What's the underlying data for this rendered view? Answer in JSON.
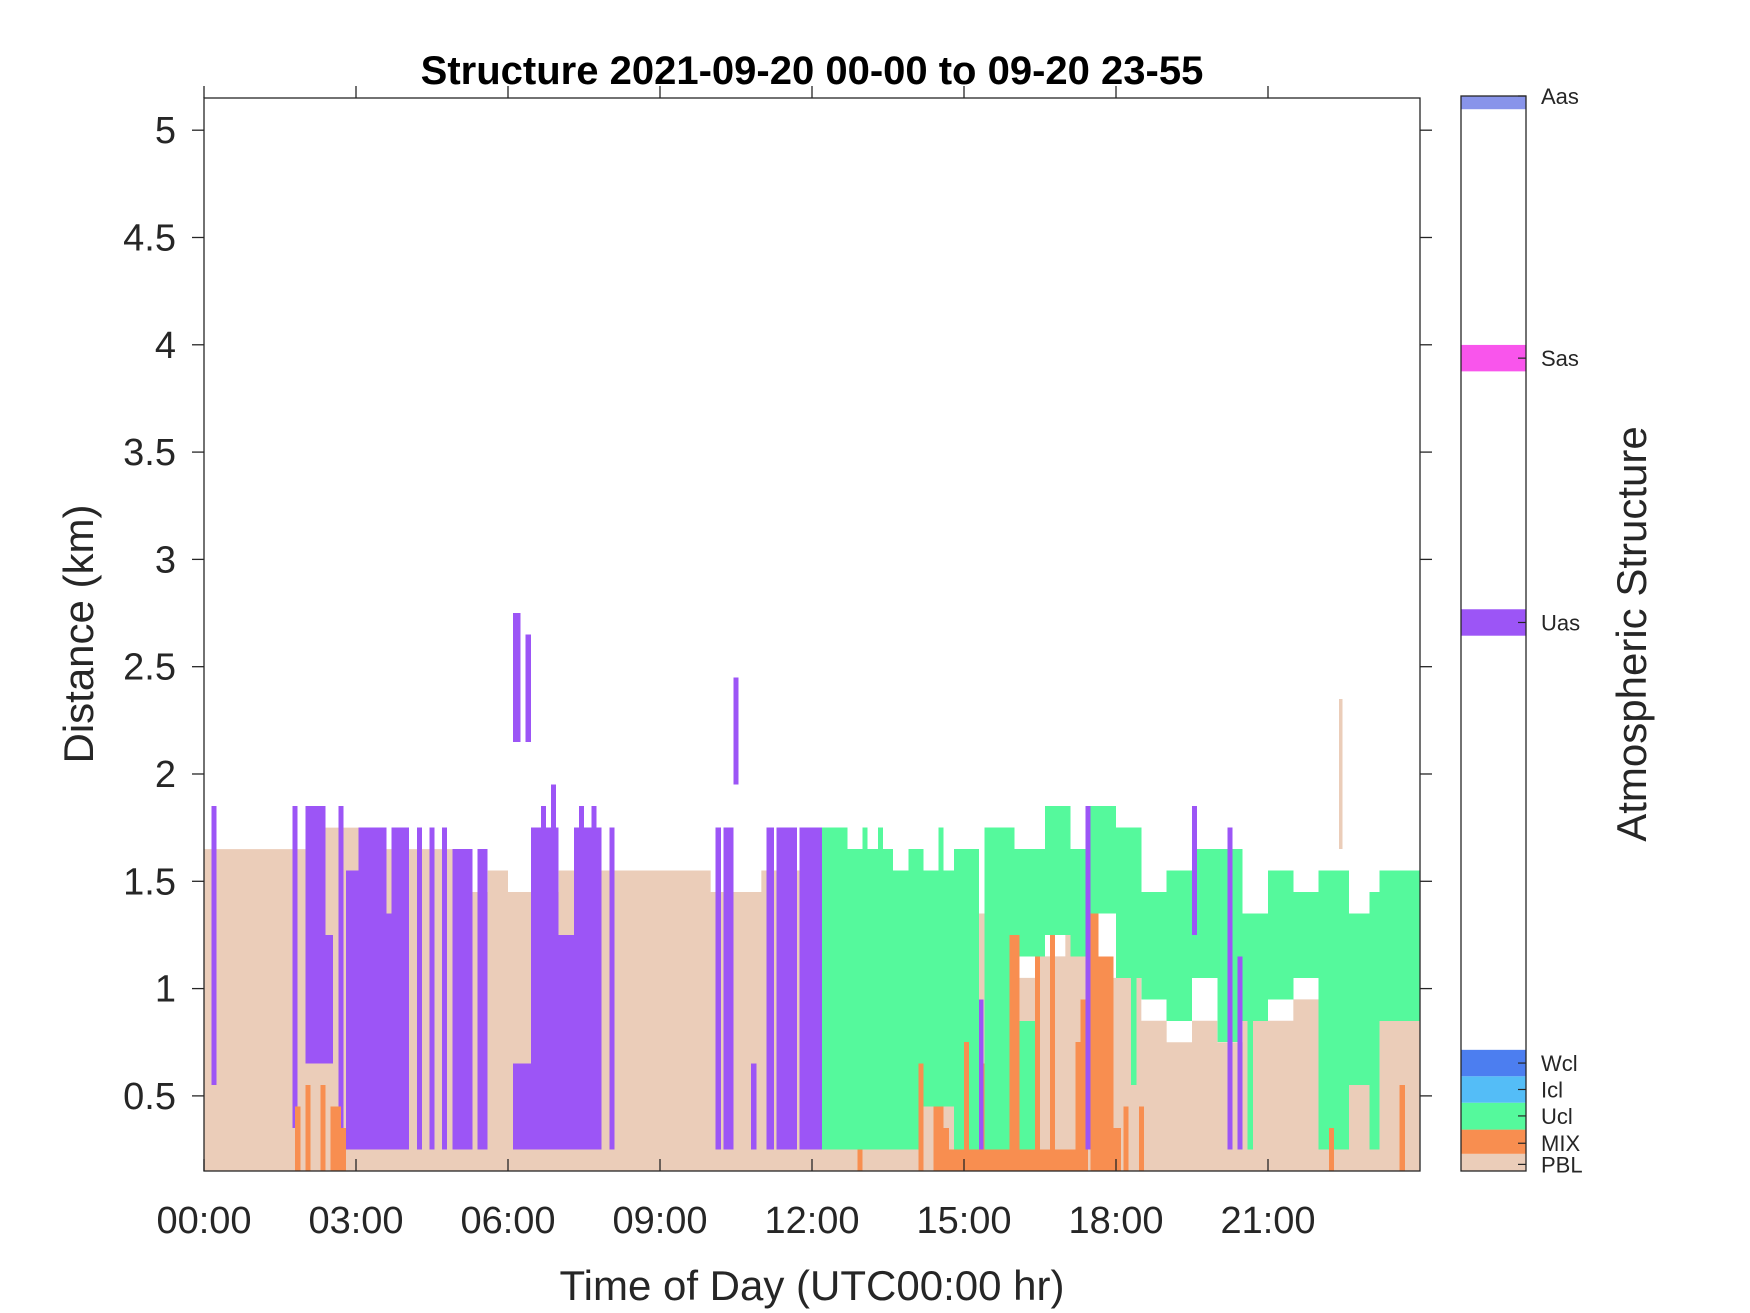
{
  "chart_data": {
    "type": "heatmap",
    "title": "Structure 2021-09-20 00-00 to 09-20 23-55",
    "xlabel": "Time of Day (UTC00:00 hr)",
    "ylabel": "Distance (km)",
    "colorbar_label": "Atmospheric Structure",
    "xlim_hours": [
      0,
      24
    ],
    "ylim_km": [
      0.15,
      5.15
    ],
    "x_ticks": [
      {
        "hour": 0,
        "label": "00:00"
      },
      {
        "hour": 3,
        "label": "03:00"
      },
      {
        "hour": 6,
        "label": "06:00"
      },
      {
        "hour": 9,
        "label": "09:00"
      },
      {
        "hour": 12,
        "label": "12:00"
      },
      {
        "hour": 15,
        "label": "15:00"
      },
      {
        "hour": 18,
        "label": "18:00"
      },
      {
        "hour": 21,
        "label": "21:00"
      }
    ],
    "y_ticks": [
      {
        "value": 0.5,
        "label": "0.5"
      },
      {
        "value": 1,
        "label": "1"
      },
      {
        "value": 1.5,
        "label": "1.5"
      },
      {
        "value": 2,
        "label": "2"
      },
      {
        "value": 2.5,
        "label": "2.5"
      },
      {
        "value": 3,
        "label": "3"
      },
      {
        "value": 3.5,
        "label": "3.5"
      },
      {
        "value": 4,
        "label": "4"
      },
      {
        "value": 4.5,
        "label": "4.5"
      },
      {
        "value": 5,
        "label": "5"
      }
    ],
    "categories": [
      {
        "code": "PBL",
        "name": "PBL",
        "color": "#ebcdb9",
        "level": 0.15
      },
      {
        "code": "MIX",
        "name": "MIX",
        "color": "#f88e50",
        "level": 0.63
      },
      {
        "code": "Ucl",
        "name": "Ucl",
        "color": "#55f99c",
        "level": 1.25
      },
      {
        "code": "Icl",
        "name": "Icl",
        "color": "#54bdf7",
        "level": 1.85
      },
      {
        "code": "Wcl",
        "name": "Wcl",
        "color": "#4c7ef0",
        "level": 2.45
      },
      {
        "code": "Uas",
        "name": "Uas",
        "color": "#9c55f6",
        "level": 12.45
      },
      {
        "code": "Sas",
        "name": "Sas",
        "color": "#f955ec",
        "level": 18.45
      },
      {
        "code": "Aas",
        "name": "Aas",
        "color": "#8894ea",
        "level": 24.4
      }
    ],
    "colorbar_range": [
      0,
      24.4
    ],
    "colorbar_band_halfwidth": 0.3,
    "cell_hours": 0.0833,
    "pbl_top_km": [
      [
        0,
        1.65
      ],
      [
        1.25,
        1.65
      ],
      [
        2.3,
        1.75
      ],
      [
        3.4,
        1.65
      ],
      [
        5.0,
        1.45
      ],
      [
        5.6,
        1.55
      ],
      [
        6.0,
        1.45
      ],
      [
        7.0,
        1.55
      ],
      [
        8.0,
        1.55
      ],
      [
        9.0,
        1.55
      ],
      [
        10.0,
        1.45
      ],
      [
        11.0,
        1.55
      ],
      [
        12.0,
        1.45
      ],
      [
        13.0,
        1.35
      ],
      [
        14.0,
        1.25
      ],
      [
        15.0,
        1.35
      ],
      [
        15.5,
        1.15
      ],
      [
        16.0,
        1.05
      ],
      [
        16.5,
        1.15
      ],
      [
        17.0,
        1.25
      ],
      [
        17.5,
        1.05
      ],
      [
        18.0,
        1.15
      ],
      [
        18.5,
        0.85
      ],
      [
        19.0,
        0.75
      ],
      [
        19.5,
        0.85
      ],
      [
        20.0,
        0.75
      ],
      [
        20.5,
        0.95
      ],
      [
        21.0,
        0.85
      ],
      [
        21.5,
        0.95
      ],
      [
        22.0,
        1.05
      ],
      [
        22.5,
        1.25
      ],
      [
        23.0,
        0.85
      ],
      [
        24.0,
        0.85
      ]
    ],
    "segments": [
      {
        "cls": "Uas",
        "t0": 0.15,
        "t1": 0.25,
        "y0": 0.55,
        "y1": 1.85
      },
      {
        "cls": "Uas",
        "t0": 1.75,
        "t1": 1.85,
        "y0": 0.35,
        "y1": 1.85
      },
      {
        "cls": "Uas",
        "t0": 2.0,
        "t1": 2.4,
        "y0": 0.65,
        "y1": 1.85
      },
      {
        "cls": "Uas",
        "t0": 2.4,
        "t1": 2.55,
        "y0": 0.65,
        "y1": 1.25
      },
      {
        "cls": "Uas",
        "t0": 2.65,
        "t1": 2.75,
        "y0": 0.25,
        "y1": 1.85
      },
      {
        "cls": "Uas",
        "t0": 2.8,
        "t1": 3.05,
        "y0": 0.25,
        "y1": 1.55
      },
      {
        "cls": "Uas",
        "t0": 3.05,
        "t1": 3.6,
        "y0": 0.25,
        "y1": 1.75
      },
      {
        "cls": "Uas",
        "t0": 3.6,
        "t1": 3.7,
        "y0": 0.25,
        "y1": 1.35
      },
      {
        "cls": "Uas",
        "t0": 3.7,
        "t1": 4.05,
        "y0": 0.25,
        "y1": 1.75
      },
      {
        "cls": "Uas",
        "t0": 4.2,
        "t1": 4.3,
        "y0": 0.25,
        "y1": 1.75
      },
      {
        "cls": "Uas",
        "t0": 4.45,
        "t1": 4.55,
        "y0": 0.25,
        "y1": 1.75
      },
      {
        "cls": "Uas",
        "t0": 4.7,
        "t1": 4.8,
        "y0": 0.25,
        "y1": 1.75
      },
      {
        "cls": "Uas",
        "t0": 4.9,
        "t1": 5.3,
        "y0": 0.25,
        "y1": 1.65
      },
      {
        "cls": "Uas",
        "t0": 5.4,
        "t1": 5.6,
        "y0": 0.25,
        "y1": 1.65
      },
      {
        "cls": "Uas",
        "t0": 6.1,
        "t1": 6.25,
        "y0": 2.15,
        "y1": 2.75
      },
      {
        "cls": "Uas",
        "t0": 6.35,
        "t1": 6.45,
        "y0": 2.15,
        "y1": 2.65
      },
      {
        "cls": "Uas",
        "t0": 6.1,
        "t1": 6.45,
        "y0": 0.25,
        "y1": 0.65
      },
      {
        "cls": "Uas",
        "t0": 6.45,
        "t1": 7.0,
        "y0": 0.25,
        "y1": 1.75
      },
      {
        "cls": "Uas",
        "t0": 6.65,
        "t1": 6.75,
        "y0": 1.75,
        "y1": 1.85
      },
      {
        "cls": "Uas",
        "t0": 6.85,
        "t1": 6.95,
        "y0": 1.75,
        "y1": 1.95
      },
      {
        "cls": "Uas",
        "t0": 7.0,
        "t1": 7.3,
        "y0": 0.25,
        "y1": 1.25
      },
      {
        "cls": "Uas",
        "t0": 7.3,
        "t1": 7.85,
        "y0": 0.25,
        "y1": 1.75
      },
      {
        "cls": "Uas",
        "t0": 7.4,
        "t1": 7.5,
        "y0": 1.75,
        "y1": 1.85
      },
      {
        "cls": "Uas",
        "t0": 7.65,
        "t1": 7.75,
        "y0": 1.75,
        "y1": 1.85
      },
      {
        "cls": "Uas",
        "t0": 8.0,
        "t1": 8.1,
        "y0": 0.25,
        "y1": 1.75
      },
      {
        "cls": "Uas",
        "t0": 10.1,
        "t1": 10.2,
        "y0": 0.25,
        "y1": 1.75
      },
      {
        "cls": "Uas",
        "t0": 10.25,
        "t1": 10.45,
        "y0": 0.25,
        "y1": 1.75
      },
      {
        "cls": "Uas",
        "t0": 10.45,
        "t1": 10.55,
        "y0": 1.95,
        "y1": 2.45
      },
      {
        "cls": "Uas",
        "t0": 10.8,
        "t1": 10.9,
        "y0": 0.25,
        "y1": 0.65
      },
      {
        "cls": "Uas",
        "t0": 11.1,
        "t1": 11.25,
        "y0": 0.25,
        "y1": 1.75
      },
      {
        "cls": "Uas",
        "t0": 11.3,
        "t1": 11.7,
        "y0": 0.25,
        "y1": 1.75
      },
      {
        "cls": "Uas",
        "t0": 11.75,
        "t1": 12.25,
        "y0": 0.25,
        "y1": 1.75
      },
      {
        "cls": "Ucl",
        "t0": 12.2,
        "t1": 12.7,
        "y0": 0.25,
        "y1": 1.75
      },
      {
        "cls": "Ucl",
        "t0": 12.7,
        "t1": 13.6,
        "y0": 0.25,
        "y1": 1.65
      },
      {
        "cls": "Ucl",
        "t0": 13.0,
        "t1": 13.1,
        "y0": 1.65,
        "y1": 1.75
      },
      {
        "cls": "Ucl",
        "t0": 13.3,
        "t1": 13.4,
        "y0": 1.65,
        "y1": 1.75
      },
      {
        "cls": "Ucl",
        "t0": 13.6,
        "t1": 14.1,
        "y0": 0.25,
        "y1": 1.55
      },
      {
        "cls": "Ucl",
        "t0": 13.9,
        "t1": 14.2,
        "y0": 0.25,
        "y1": 1.65
      },
      {
        "cls": "Ucl",
        "t0": 14.2,
        "t1": 14.8,
        "y0": 0.45,
        "y1": 1.55
      },
      {
        "cls": "Ucl",
        "t0": 14.5,
        "t1": 14.6,
        "y0": 1.55,
        "y1": 1.75
      },
      {
        "cls": "Ucl",
        "t0": 14.8,
        "t1": 15.3,
        "y0": 0.25,
        "y1": 1.65
      },
      {
        "cls": "Ucl",
        "t0": 15.4,
        "t1": 16.0,
        "y0": 0.25,
        "y1": 1.75
      },
      {
        "cls": "Ucl",
        "t0": 16.0,
        "t1": 16.6,
        "y0": 1.15,
        "y1": 1.65
      },
      {
        "cls": "Ucl",
        "t0": 16.6,
        "t1": 17.1,
        "y0": 1.25,
        "y1": 1.85
      },
      {
        "cls": "Ucl",
        "t0": 17.1,
        "t1": 17.5,
        "y0": 1.15,
        "y1": 1.65
      },
      {
        "cls": "Ucl",
        "t0": 17.5,
        "t1": 18.0,
        "y0": 1.35,
        "y1": 1.85
      },
      {
        "cls": "Ucl",
        "t0": 18.0,
        "t1": 18.5,
        "y0": 1.05,
        "y1": 1.75
      },
      {
        "cls": "Ucl",
        "t0": 18.5,
        "t1": 19.0,
        "y0": 0.95,
        "y1": 1.45
      },
      {
        "cls": "Ucl",
        "t0": 18.3,
        "t1": 18.4,
        "y0": 0.55,
        "y1": 1.05
      },
      {
        "cls": "Ucl",
        "t0": 19.0,
        "t1": 19.5,
        "y0": 0.85,
        "y1": 1.55
      },
      {
        "cls": "Ucl",
        "t0": 19.5,
        "t1": 20.0,
        "y0": 1.05,
        "y1": 1.65
      },
      {
        "cls": "Ucl",
        "t0": 20.0,
        "t1": 20.5,
        "y0": 0.75,
        "y1": 1.65
      },
      {
        "cls": "Ucl",
        "t0": 20.5,
        "t1": 21.0,
        "y0": 0.85,
        "y1": 1.35
      },
      {
        "cls": "Ucl",
        "t0": 20.6,
        "t1": 20.7,
        "y0": 0.25,
        "y1": 1.35
      },
      {
        "cls": "Ucl",
        "t0": 21.0,
        "t1": 21.5,
        "y0": 0.95,
        "y1": 1.55
      },
      {
        "cls": "Ucl",
        "t0": 21.5,
        "t1": 22.0,
        "y0": 1.05,
        "y1": 1.45
      },
      {
        "cls": "Ucl",
        "t0": 22.0,
        "t1": 22.6,
        "y0": 0.25,
        "y1": 1.55
      },
      {
        "cls": "Ucl",
        "t0": 22.6,
        "t1": 23.0,
        "y0": 0.55,
        "y1": 1.35
      },
      {
        "cls": "Ucl",
        "t0": 23.0,
        "t1": 23.2,
        "y0": 0.25,
        "y1": 1.45
      },
      {
        "cls": "Ucl",
        "t0": 23.2,
        "t1": 24.0,
        "y0": 0.85,
        "y1": 1.55
      },
      {
        "cls": "Ucl",
        "t0": 16.0,
        "t1": 16.5,
        "y0": 0.25,
        "y1": 0.85
      },
      {
        "cls": "MIX",
        "t0": 1.8,
        "t1": 1.9,
        "y0": 0.15,
        "y1": 0.45
      },
      {
        "cls": "MIX",
        "t0": 2.0,
        "t1": 2.1,
        "y0": 0.15,
        "y1": 0.55
      },
      {
        "cls": "MIX",
        "t0": 2.3,
        "t1": 2.4,
        "y0": 0.15,
        "y1": 0.55
      },
      {
        "cls": "MIX",
        "t0": 2.5,
        "t1": 2.7,
        "y0": 0.15,
        "y1": 0.45
      },
      {
        "cls": "MIX",
        "t0": 2.7,
        "t1": 2.8,
        "y0": 0.15,
        "y1": 0.35
      },
      {
        "cls": "MIX",
        "t0": 12.9,
        "t1": 13.0,
        "y0": 0.15,
        "y1": 0.25
      },
      {
        "cls": "MIX",
        "t0": 14.1,
        "t1": 14.2,
        "y0": 0.15,
        "y1": 0.65
      },
      {
        "cls": "MIX",
        "t0": 14.4,
        "t1": 14.6,
        "y0": 0.15,
        "y1": 0.45
      },
      {
        "cls": "MIX",
        "t0": 14.6,
        "t1": 14.7,
        "y0": 0.15,
        "y1": 0.35
      },
      {
        "cls": "MIX",
        "t0": 14.7,
        "t1": 15.0,
        "y0": 0.15,
        "y1": 0.25
      },
      {
        "cls": "MIX",
        "t0": 15.0,
        "t1": 15.1,
        "y0": 0.15,
        "y1": 0.75
      },
      {
        "cls": "MIX",
        "t0": 15.1,
        "t1": 15.9,
        "y0": 0.15,
        "y1": 0.25
      },
      {
        "cls": "MIX",
        "t0": 15.3,
        "t1": 15.4,
        "y0": 0.15,
        "y1": 0.65
      },
      {
        "cls": "MIX",
        "t0": 15.9,
        "t1": 16.1,
        "y0": 0.15,
        "y1": 1.25
      },
      {
        "cls": "MIX",
        "t0": 16.1,
        "t1": 16.7,
        "y0": 0.15,
        "y1": 0.25
      },
      {
        "cls": "MIX",
        "t0": 16.4,
        "t1": 16.5,
        "y0": 0.15,
        "y1": 1.15
      },
      {
        "cls": "MIX",
        "t0": 16.7,
        "t1": 16.8,
        "y0": 0.15,
        "y1": 1.25
      },
      {
        "cls": "MIX",
        "t0": 16.8,
        "t1": 17.2,
        "y0": 0.15,
        "y1": 0.25
      },
      {
        "cls": "MIX",
        "t0": 17.2,
        "t1": 17.3,
        "y0": 0.15,
        "y1": 0.75
      },
      {
        "cls": "MIX",
        "t0": 17.3,
        "t1": 17.45,
        "y0": 0.15,
        "y1": 0.95
      },
      {
        "cls": "MIX",
        "t0": 17.5,
        "t1": 17.65,
        "y0": 0.15,
        "y1": 1.35
      },
      {
        "cls": "MIX",
        "t0": 17.65,
        "t1": 17.95,
        "y0": 0.15,
        "y1": 1.15
      },
      {
        "cls": "MIX",
        "t0": 17.95,
        "t1": 18.1,
        "y0": 0.15,
        "y1": 0.35
      },
      {
        "cls": "MIX",
        "t0": 18.15,
        "t1": 18.25,
        "y0": 0.15,
        "y1": 0.45
      },
      {
        "cls": "MIX",
        "t0": 18.45,
        "t1": 18.55,
        "y0": 0.15,
        "y1": 0.45
      },
      {
        "cls": "MIX",
        "t0": 22.2,
        "t1": 22.3,
        "y0": 0.15,
        "y1": 0.35
      },
      {
        "cls": "MIX",
        "t0": 23.6,
        "t1": 23.7,
        "y0": 0.15,
        "y1": 0.55
      },
      {
        "cls": "Uas",
        "t0": 15.3,
        "t1": 15.38,
        "y0": 0.25,
        "y1": 0.95
      },
      {
        "cls": "Uas",
        "t0": 17.4,
        "t1": 17.5,
        "y0": 0.25,
        "y1": 1.85
      },
      {
        "cls": "Uas",
        "t0": 19.5,
        "t1": 19.6,
        "y0": 1.25,
        "y1": 1.85
      },
      {
        "cls": "Uas",
        "t0": 20.2,
        "t1": 20.3,
        "y0": 0.25,
        "y1": 1.75
      },
      {
        "cls": "Uas",
        "t0": 20.4,
        "t1": 20.5,
        "y0": 0.25,
        "y1": 1.15
      },
      {
        "cls": "PBL",
        "t0": 22.4,
        "t1": 22.47,
        "y0": 1.65,
        "y1": 2.35
      }
    ]
  }
}
